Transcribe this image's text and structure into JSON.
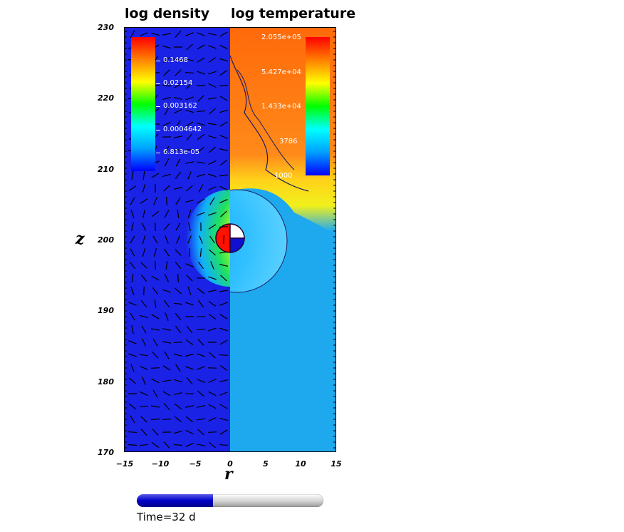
{
  "panel_titles": {
    "left": "log density",
    "right": "log temperature"
  },
  "chart_data": {
    "type": "heatmap",
    "title": "",
    "xlabel": "r",
    "ylabel": "z",
    "xlim": [
      -15,
      15
    ],
    "ylim": [
      170,
      230
    ],
    "x_ticks": [
      "−15",
      "−10",
      "−5",
      "0",
      "5",
      "10",
      "15"
    ],
    "y_ticks": [
      "170",
      "180",
      "190",
      "200",
      "210",
      "220",
      "230"
    ],
    "left_panel": {
      "field": "log density",
      "colorbar_ticks": [
        "0.1468",
        "0.02154",
        "0.003162",
        "0.0004642",
        "6.813e-05"
      ]
    },
    "right_panel": {
      "field": "log temperature",
      "colorbar_ticks": [
        "2.055e+05",
        "5.427e+04",
        "1.433e+04",
        "3786",
        "1000"
      ]
    },
    "colormap": [
      "#0000ff",
      "#00a0ff",
      "#00ffff",
      "#00ff00",
      "#ffff00",
      "#ff8000",
      "#ff0000"
    ],
    "grid": false
  },
  "time": {
    "label": "Time=32 d",
    "progress": 0.41
  }
}
